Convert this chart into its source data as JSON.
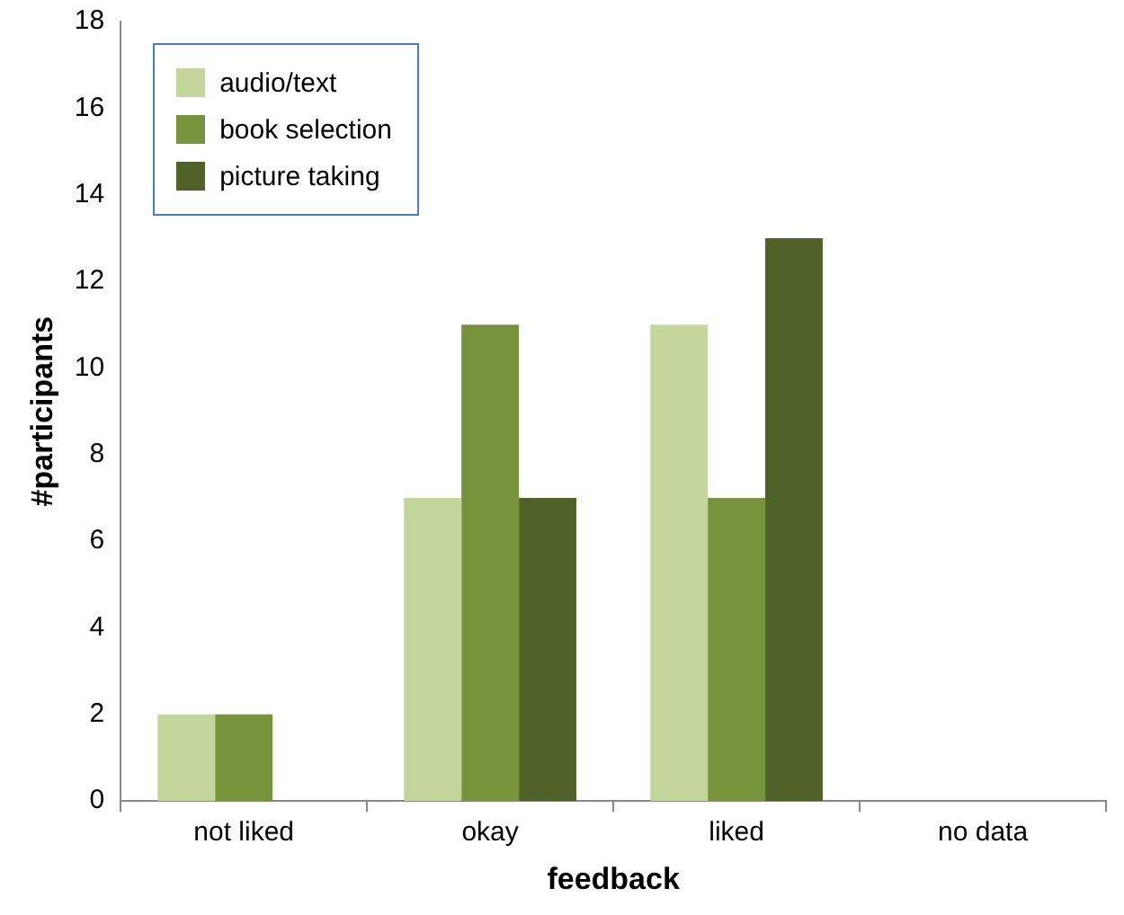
{
  "chart_data": {
    "type": "bar",
    "xlabel": "feedback",
    "ylabel": "#participants",
    "categories": [
      "not liked",
      "okay",
      "liked",
      "no data"
    ],
    "series": [
      {
        "name": "audio/text",
        "color": "#c3d69b",
        "values": [
          2,
          7,
          11,
          0
        ]
      },
      {
        "name": "book selection",
        "color": "#77933c",
        "values": [
          2,
          11,
          7,
          0
        ]
      },
      {
        "name": "picture taking",
        "color": "#4f6228",
        "values": [
          0,
          7,
          13,
          0
        ]
      }
    ],
    "ylim": [
      0,
      18
    ],
    "yticks": [
      0,
      2,
      4,
      6,
      8,
      10,
      12,
      14,
      16,
      18
    ],
    "grid": false,
    "legend": "top left"
  }
}
